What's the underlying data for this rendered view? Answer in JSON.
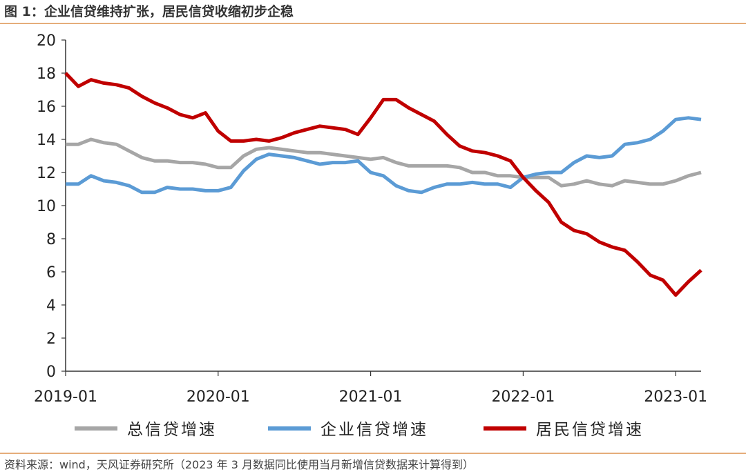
{
  "title": "图 1：企业信贷维持扩张，居民信贷收缩初步企稳",
  "source": "资料来源：wind，天风证券研究所（2023 年 3 月数据同比使用当月新增信贷数据来计算得到）",
  "chart_data": {
    "type": "line",
    "x_tick_labels": [
      "2019-01",
      "2020-01",
      "2021-01",
      "2022-01",
      "2023-01"
    ],
    "y_tick_labels": [
      "0",
      "2",
      "4",
      "6",
      "8",
      "10",
      "12",
      "14",
      "16",
      "18",
      "20"
    ],
    "ylim": [
      0,
      20
    ],
    "xlim": [
      "2019-01",
      "2023-03"
    ],
    "grid": false,
    "legend_position": "bottom",
    "x": [
      "2019-01",
      "2019-02",
      "2019-03",
      "2019-04",
      "2019-05",
      "2019-06",
      "2019-07",
      "2019-08",
      "2019-09",
      "2019-10",
      "2019-11",
      "2019-12",
      "2020-01",
      "2020-02",
      "2020-03",
      "2020-04",
      "2020-05",
      "2020-06",
      "2020-07",
      "2020-08",
      "2020-09",
      "2020-10",
      "2020-11",
      "2020-12",
      "2021-01",
      "2021-02",
      "2021-03",
      "2021-04",
      "2021-05",
      "2021-06",
      "2021-07",
      "2021-08",
      "2021-09",
      "2021-10",
      "2021-11",
      "2021-12",
      "2022-01",
      "2022-02",
      "2022-03",
      "2022-04",
      "2022-05",
      "2022-06",
      "2022-07",
      "2022-08",
      "2022-09",
      "2022-10",
      "2022-11",
      "2022-12",
      "2023-01",
      "2023-02",
      "2023-03"
    ],
    "series": [
      {
        "name": "总信贷增速",
        "color": "#a6a6a6",
        "values": [
          13.7,
          13.7,
          14.0,
          13.8,
          13.7,
          13.3,
          12.9,
          12.7,
          12.7,
          12.6,
          12.6,
          12.5,
          12.3,
          12.3,
          13.0,
          13.4,
          13.5,
          13.4,
          13.3,
          13.2,
          13.2,
          13.1,
          13.0,
          12.9,
          12.8,
          12.9,
          12.6,
          12.4,
          12.4,
          12.4,
          12.4,
          12.3,
          12.0,
          12.0,
          11.8,
          11.8,
          11.7,
          11.7,
          11.7,
          11.2,
          11.3,
          11.5,
          11.3,
          11.2,
          11.5,
          11.4,
          11.3,
          11.3,
          11.5,
          11.8,
          12.0
        ]
      },
      {
        "name": "企业信贷增速",
        "color": "#5b9bd5",
        "values": [
          11.3,
          11.3,
          11.8,
          11.5,
          11.4,
          11.2,
          10.8,
          10.8,
          11.1,
          11.0,
          11.0,
          10.9,
          10.9,
          11.1,
          12.1,
          12.8,
          13.1,
          13.0,
          12.9,
          12.7,
          12.5,
          12.6,
          12.6,
          12.7,
          12.0,
          11.8,
          11.2,
          10.9,
          10.8,
          11.1,
          11.3,
          11.3,
          11.4,
          11.3,
          11.3,
          11.1,
          11.7,
          11.9,
          12.0,
          12.0,
          12.6,
          13.0,
          12.9,
          13.0,
          13.7,
          13.8,
          14.0,
          14.5,
          15.2,
          15.3,
          15.2
        ]
      },
      {
        "name": "居民信贷增速",
        "color": "#c00000",
        "values": [
          18.0,
          17.2,
          17.6,
          17.4,
          17.3,
          17.1,
          16.6,
          16.2,
          15.9,
          15.5,
          15.3,
          15.6,
          14.5,
          13.9,
          13.9,
          14.0,
          13.9,
          14.1,
          14.4,
          14.6,
          14.8,
          14.7,
          14.6,
          14.3,
          15.3,
          16.4,
          16.4,
          15.9,
          15.5,
          15.1,
          14.3,
          13.6,
          13.3,
          13.2,
          13.0,
          12.7,
          11.7,
          10.9,
          10.2,
          9.0,
          8.5,
          8.3,
          7.8,
          7.5,
          7.3,
          6.6,
          5.8,
          5.5,
          4.6,
          5.4,
          6.1
        ]
      }
    ]
  }
}
